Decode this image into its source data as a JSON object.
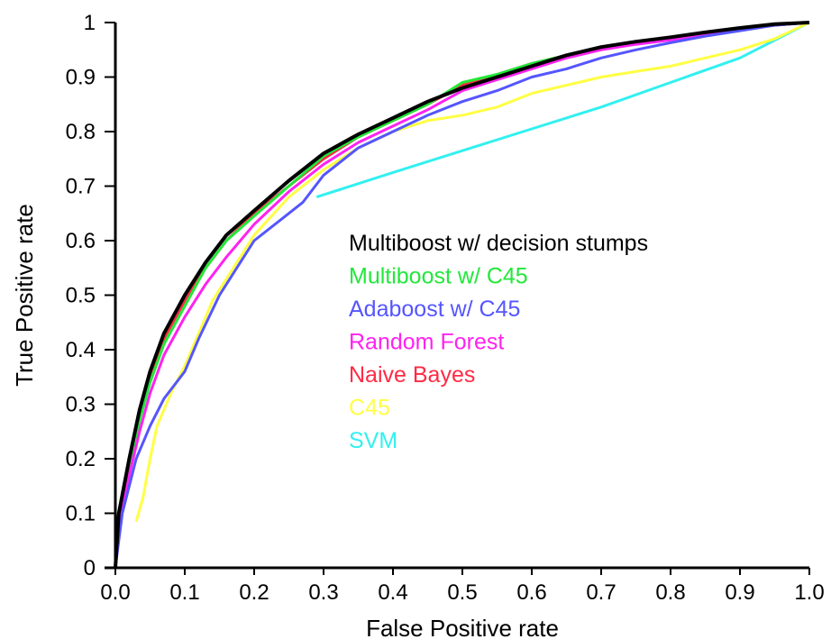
{
  "chart_data": {
    "type": "line",
    "title": "",
    "xlabel": "False Positive rate",
    "ylabel": "True Positive rate",
    "xlim": [
      0,
      1
    ],
    "ylim": [
      0,
      1
    ],
    "x_ticks": [
      "0.0",
      "0.1",
      "0.2",
      "0.3",
      "0.4",
      "0.5",
      "0.6",
      "0.7",
      "0.8",
      "0.9",
      "1.0"
    ],
    "y_ticks": [
      "0",
      "0.1",
      "0.2",
      "0.3",
      "0.4",
      "0.5",
      "0.6",
      "0.7",
      "0.8",
      "0.9",
      "1"
    ],
    "grid": false,
    "legend_position": "center-right",
    "series": [
      {
        "name": "Naive Bayes",
        "color": "#ff2a44",
        "points": [
          [
            0,
            0
          ],
          [
            0.005,
            0.1
          ],
          [
            0.02,
            0.2
          ],
          [
            0.035,
            0.28
          ],
          [
            0.05,
            0.35
          ],
          [
            0.07,
            0.42
          ],
          [
            0.1,
            0.49
          ],
          [
            0.13,
            0.55
          ],
          [
            0.16,
            0.6
          ],
          [
            0.2,
            0.65
          ],
          [
            0.25,
            0.7
          ],
          [
            0.3,
            0.75
          ],
          [
            0.35,
            0.79
          ],
          [
            0.4,
            0.82
          ],
          [
            0.45,
            0.85
          ],
          [
            0.5,
            0.885
          ],
          [
            0.55,
            0.905
          ],
          [
            0.6,
            0.925
          ],
          [
            0.65,
            0.94
          ],
          [
            0.7,
            0.955
          ],
          [
            0.75,
            0.963
          ],
          [
            0.8,
            0.97
          ],
          [
            0.85,
            0.98
          ],
          [
            0.9,
            0.988
          ],
          [
            0.95,
            0.995
          ],
          [
            1,
            1
          ]
        ]
      },
      {
        "name": "Multiboost w/ C45",
        "color": "#22e83a",
        "points": [
          [
            0,
            0
          ],
          [
            0.005,
            0.09
          ],
          [
            0.02,
            0.18
          ],
          [
            0.035,
            0.27
          ],
          [
            0.05,
            0.34
          ],
          [
            0.07,
            0.41
          ],
          [
            0.1,
            0.48
          ],
          [
            0.13,
            0.55
          ],
          [
            0.16,
            0.6
          ],
          [
            0.2,
            0.645
          ],
          [
            0.25,
            0.7
          ],
          [
            0.3,
            0.755
          ],
          [
            0.35,
            0.79
          ],
          [
            0.4,
            0.82
          ],
          [
            0.45,
            0.85
          ],
          [
            0.5,
            0.89
          ],
          [
            0.55,
            0.905
          ],
          [
            0.6,
            0.925
          ],
          [
            0.65,
            0.94
          ],
          [
            0.7,
            0.955
          ],
          [
            0.75,
            0.963
          ],
          [
            0.8,
            0.97
          ],
          [
            0.85,
            0.98
          ],
          [
            0.9,
            0.988
          ],
          [
            0.95,
            0.995
          ],
          [
            1,
            1
          ]
        ]
      },
      {
        "name": "Random Forest",
        "color": "#ff22f0",
        "points": [
          [
            0,
            0
          ],
          [
            0.005,
            0.08
          ],
          [
            0.02,
            0.17
          ],
          [
            0.035,
            0.25
          ],
          [
            0.05,
            0.32
          ],
          [
            0.07,
            0.39
          ],
          [
            0.1,
            0.46
          ],
          [
            0.13,
            0.52
          ],
          [
            0.16,
            0.57
          ],
          [
            0.2,
            0.63
          ],
          [
            0.25,
            0.69
          ],
          [
            0.3,
            0.74
          ],
          [
            0.35,
            0.78
          ],
          [
            0.4,
            0.81
          ],
          [
            0.45,
            0.84
          ],
          [
            0.5,
            0.875
          ],
          [
            0.55,
            0.895
          ],
          [
            0.6,
            0.915
          ],
          [
            0.65,
            0.935
          ],
          [
            0.7,
            0.95
          ],
          [
            0.75,
            0.96
          ],
          [
            0.8,
            0.968
          ],
          [
            0.85,
            0.978
          ],
          [
            0.9,
            0.987
          ],
          [
            0.95,
            0.995
          ],
          [
            1,
            1
          ]
        ]
      },
      {
        "name": "SVM",
        "color": "#33f0f0",
        "points": [
          [
            0.29,
            0.68
          ],
          [
            0.4,
            0.725
          ],
          [
            0.5,
            0.765
          ],
          [
            0.6,
            0.805
          ],
          [
            0.7,
            0.845
          ],
          [
            0.8,
            0.89
          ],
          [
            0.9,
            0.935
          ],
          [
            1,
            1
          ]
        ]
      },
      {
        "name": "C45",
        "color": "#ffff44",
        "points": [
          [
            0.03,
            0.085
          ],
          [
            0.04,
            0.13
          ],
          [
            0.05,
            0.2
          ],
          [
            0.06,
            0.26
          ],
          [
            0.08,
            0.32
          ],
          [
            0.1,
            0.37
          ],
          [
            0.12,
            0.43
          ],
          [
            0.14,
            0.49
          ],
          [
            0.17,
            0.55
          ],
          [
            0.2,
            0.61
          ],
          [
            0.25,
            0.68
          ],
          [
            0.3,
            0.73
          ],
          [
            0.35,
            0.77
          ],
          [
            0.4,
            0.8
          ],
          [
            0.45,
            0.82
          ],
          [
            0.5,
            0.83
          ],
          [
            0.55,
            0.845
          ],
          [
            0.6,
            0.87
          ],
          [
            0.65,
            0.885
          ],
          [
            0.7,
            0.9
          ],
          [
            0.75,
            0.91
          ],
          [
            0.8,
            0.92
          ],
          [
            0.85,
            0.935
          ],
          [
            0.9,
            0.95
          ],
          [
            0.95,
            0.97
          ],
          [
            1,
            1
          ]
        ]
      },
      {
        "name": "Adaboost w/ C45",
        "color": "#5555ff",
        "points": [
          [
            0,
            0
          ],
          [
            0.005,
            0.05
          ],
          [
            0.01,
            0.1
          ],
          [
            0.02,
            0.15
          ],
          [
            0.03,
            0.2
          ],
          [
            0.05,
            0.26
          ],
          [
            0.07,
            0.31
          ],
          [
            0.1,
            0.36
          ],
          [
            0.12,
            0.42
          ],
          [
            0.15,
            0.5
          ],
          [
            0.18,
            0.56
          ],
          [
            0.2,
            0.6
          ],
          [
            0.24,
            0.64
          ],
          [
            0.27,
            0.67
          ],
          [
            0.3,
            0.72
          ],
          [
            0.35,
            0.77
          ],
          [
            0.4,
            0.8
          ],
          [
            0.45,
            0.83
          ],
          [
            0.5,
            0.855
          ],
          [
            0.55,
            0.875
          ],
          [
            0.6,
            0.9
          ],
          [
            0.65,
            0.915
          ],
          [
            0.7,
            0.935
          ],
          [
            0.75,
            0.95
          ],
          [
            0.8,
            0.963
          ],
          [
            0.85,
            0.975
          ],
          [
            0.9,
            0.985
          ],
          [
            0.95,
            0.995
          ],
          [
            1,
            1
          ]
        ]
      },
      {
        "name": "Multiboost w/ decision stumps",
        "color": "#000000",
        "points": [
          [
            0,
            0
          ],
          [
            0.005,
            0.1
          ],
          [
            0.02,
            0.2
          ],
          [
            0.035,
            0.29
          ],
          [
            0.05,
            0.36
          ],
          [
            0.07,
            0.43
          ],
          [
            0.1,
            0.5
          ],
          [
            0.13,
            0.56
          ],
          [
            0.16,
            0.61
          ],
          [
            0.2,
            0.655
          ],
          [
            0.25,
            0.71
          ],
          [
            0.3,
            0.76
          ],
          [
            0.35,
            0.795
          ],
          [
            0.4,
            0.825
          ],
          [
            0.45,
            0.855
          ],
          [
            0.5,
            0.88
          ],
          [
            0.55,
            0.9
          ],
          [
            0.6,
            0.92
          ],
          [
            0.65,
            0.94
          ],
          [
            0.7,
            0.955
          ],
          [
            0.75,
            0.965
          ],
          [
            0.8,
            0.973
          ],
          [
            0.85,
            0.982
          ],
          [
            0.9,
            0.99
          ],
          [
            0.95,
            0.997
          ],
          [
            1,
            1
          ]
        ]
      }
    ],
    "legend": [
      {
        "name": "Multiboost w/ decision stumps",
        "color": "#000000"
      },
      {
        "name": "Multiboost w/ C45",
        "color": "#22e83a"
      },
      {
        "name": "Adaboost w/ C45",
        "color": "#5555ff"
      },
      {
        "name": "Random Forest",
        "color": "#ff22f0"
      },
      {
        "name": "Naive Bayes",
        "color": "#ff2a44"
      },
      {
        "name": "C45",
        "color": "#ffff44"
      },
      {
        "name": "SVM",
        "color": "#33f0f0"
      }
    ]
  }
}
